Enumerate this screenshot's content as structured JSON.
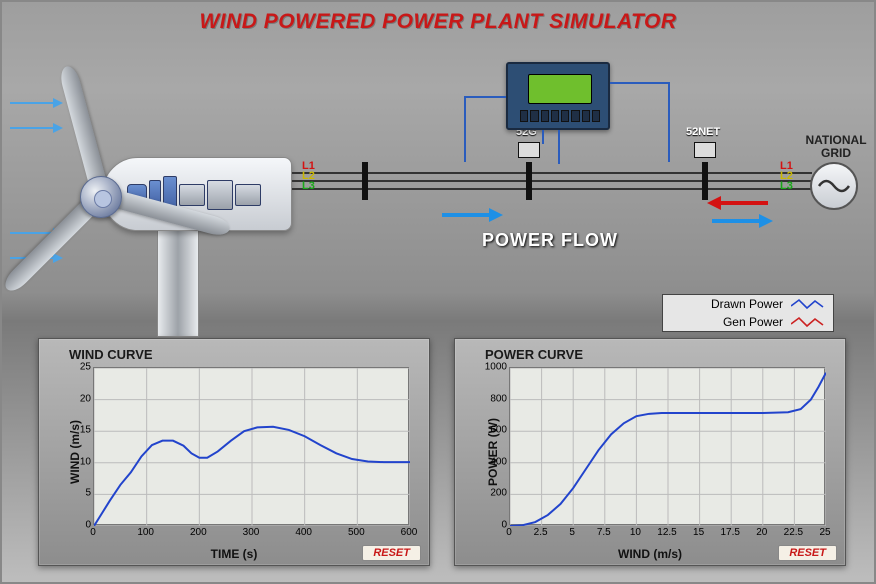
{
  "title": "WIND POWERED POWER PLANT SIMULATOR",
  "colors": {
    "title": "#c81818",
    "l1": "#d41212",
    "l2": "#e6d100",
    "l3": "#18a818",
    "arrow_blue": "#1e90e6",
    "arrow_red": "#d41212",
    "drawn_power": "#2244cc",
    "gen_power": "#1a9a1a",
    "chart_bg": "#e8eae5",
    "grid_line": "#bfbfbf"
  },
  "diagram": {
    "lines": {
      "l1": "L1",
      "l2": "L2",
      "l3": "L3"
    },
    "breakers": {
      "g": "52G",
      "net": "52NET"
    },
    "power_flow_label": "POWER FLOW",
    "national_grid_label": "NATIONAL\nGRID"
  },
  "legend": {
    "items": [
      {
        "label": "Drawn Power",
        "color": "#2244cc"
      },
      {
        "label": "Gen Power",
        "color": "#cc2222"
      }
    ]
  },
  "wind_chart": {
    "type": "line",
    "title": "WIND CURVE",
    "x_label": "TIME (s)",
    "y_label": "WIND (m/s)",
    "xlim": [
      0,
      600
    ],
    "xtick_step": 100,
    "ylim": [
      0,
      25
    ],
    "ytick_step": 5,
    "background": "#e8eae5",
    "grid_color": "#bfbfbf",
    "line_color": "#2244cc",
    "line_width": 2,
    "data": [
      [
        0,
        0
      ],
      [
        15,
        2
      ],
      [
        30,
        4
      ],
      [
        50,
        6.5
      ],
      [
        70,
        8.5
      ],
      [
        90,
        11
      ],
      [
        110,
        12.8
      ],
      [
        130,
        13.5
      ],
      [
        150,
        13.5
      ],
      [
        170,
        12.7
      ],
      [
        185,
        11.5
      ],
      [
        200,
        10.8
      ],
      [
        215,
        10.8
      ],
      [
        235,
        11.8
      ],
      [
        260,
        13.5
      ],
      [
        285,
        15
      ],
      [
        310,
        15.6
      ],
      [
        340,
        15.7
      ],
      [
        370,
        15.2
      ],
      [
        400,
        14.2
      ],
      [
        430,
        12.8
      ],
      [
        460,
        11.5
      ],
      [
        490,
        10.6
      ],
      [
        520,
        10.2
      ],
      [
        550,
        10.1
      ],
      [
        580,
        10.1
      ],
      [
        600,
        10.1
      ]
    ],
    "reset_label": "RESET"
  },
  "power_chart": {
    "type": "line",
    "title": "POWER CURVE",
    "x_label": "WIND (m/s)",
    "y_label": "POWER (W)",
    "xlim": [
      0,
      25
    ],
    "xtick_step": 2.5,
    "ylim": [
      0,
      1000
    ],
    "ytick_step": 200,
    "background": "#e8eae5",
    "grid_color": "#bfbfbf",
    "line_color": "#2244cc",
    "line_width": 2,
    "data": [
      [
        0,
        0
      ],
      [
        1,
        5
      ],
      [
        2,
        25
      ],
      [
        3,
        70
      ],
      [
        4,
        140
      ],
      [
        5,
        240
      ],
      [
        6,
        360
      ],
      [
        7,
        480
      ],
      [
        8,
        580
      ],
      [
        9,
        650
      ],
      [
        10,
        695
      ],
      [
        11,
        710
      ],
      [
        12,
        715
      ],
      [
        14,
        715
      ],
      [
        16,
        715
      ],
      [
        18,
        715
      ],
      [
        20,
        715
      ],
      [
        22,
        720
      ],
      [
        23,
        740
      ],
      [
        23.8,
        800
      ],
      [
        24.4,
        880
      ],
      [
        25,
        970
      ]
    ],
    "reset_label": "RESET"
  }
}
